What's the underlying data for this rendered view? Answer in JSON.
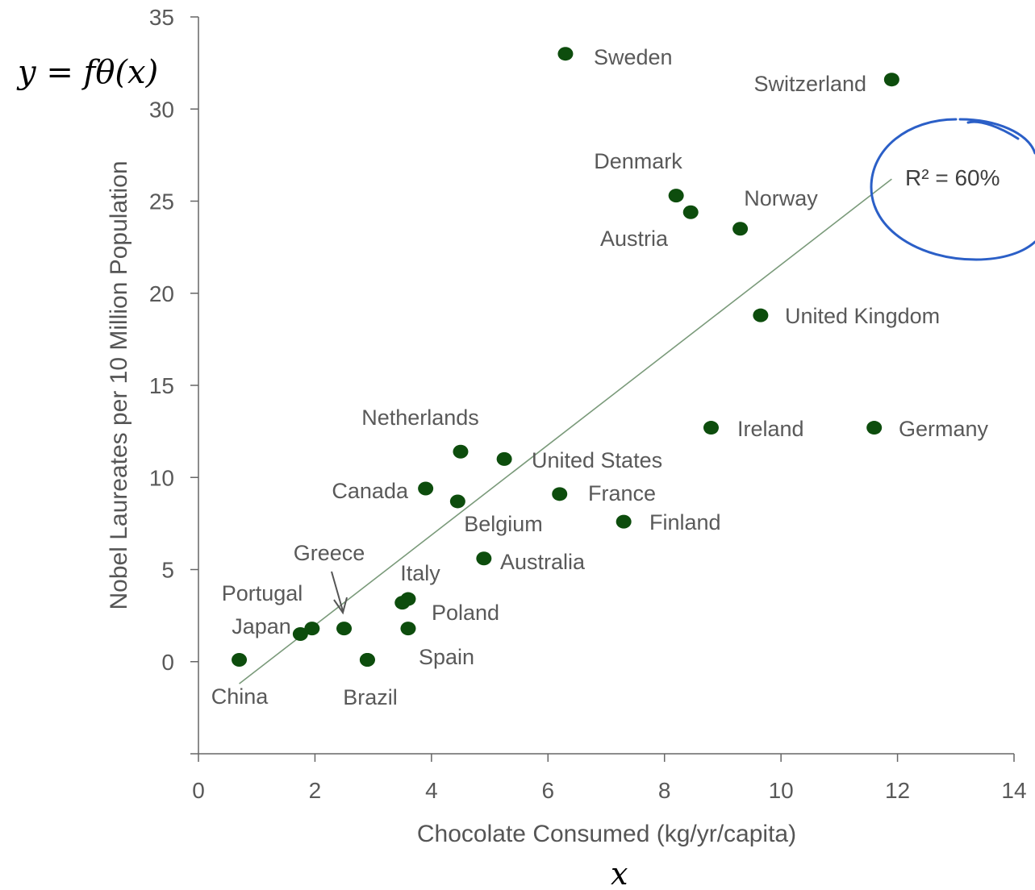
{
  "chart_data": {
    "type": "scatter",
    "xlabel": "Chocolate Consumed (kg/yr/capita)",
    "ylabel": "Nobel Laureates per 10 Million Population",
    "xlim": [
      0,
      14
    ],
    "ylim": [
      -5,
      35
    ],
    "x_ticks": [
      "0",
      "2",
      "4",
      "6",
      "8",
      "10",
      "12",
      "14"
    ],
    "y_ticks": [
      "0",
      "5",
      "10",
      "15",
      "20",
      "25",
      "30",
      "35"
    ],
    "points": [
      {
        "label": "Sweden",
        "x": 6.3,
        "y": 33.0
      },
      {
        "label": "Switzerland",
        "x": 11.9,
        "y": 31.6
      },
      {
        "label": "Denmark",
        "x": 8.2,
        "y": 25.3
      },
      {
        "label": "Austria",
        "x": 8.45,
        "y": 24.4
      },
      {
        "label": "Norway",
        "x": 9.3,
        "y": 23.5
      },
      {
        "label": "United Kingdom",
        "x": 9.65,
        "y": 18.8
      },
      {
        "label": "Ireland",
        "x": 8.8,
        "y": 12.7
      },
      {
        "label": "Germany",
        "x": 11.6,
        "y": 12.7
      },
      {
        "label": "Netherlands",
        "x": 4.5,
        "y": 11.4
      },
      {
        "label": "United States",
        "x": 5.25,
        "y": 11.0
      },
      {
        "label": "Canada",
        "x": 3.9,
        "y": 9.4
      },
      {
        "label": "Belgium",
        "x": 4.45,
        "y": 8.7
      },
      {
        "label": "France",
        "x": 6.2,
        "y": 9.1
      },
      {
        "label": "Finland",
        "x": 7.3,
        "y": 7.6
      },
      {
        "label": "Australia",
        "x": 4.9,
        "y": 5.6
      },
      {
        "label": "Italy",
        "x": 3.6,
        "y": 3.4
      },
      {
        "label": "Italy-2",
        "x": 3.5,
        "y": 3.2
      },
      {
        "label": "Poland",
        "x": 3.6,
        "y": 1.8
      },
      {
        "label": "Greece",
        "x": 2.5,
        "y": 1.8
      },
      {
        "label": "Portugal",
        "x": 1.95,
        "y": 1.8
      },
      {
        "label": "Japan",
        "x": 1.75,
        "y": 1.5
      },
      {
        "label": "Spain",
        "x": 2.9,
        "y": 0.1
      },
      {
        "label": "China",
        "x": 0.7,
        "y": 0.1
      },
      {
        "label": "Brazil",
        "x": 2.9,
        "y": 0.1
      }
    ],
    "labels": [
      "Sweden",
      "Switzerland",
      "Denmark",
      "Austria",
      "Norway",
      "United Kingdom",
      "Ireland",
      "Germany",
      "Netherlands",
      "United States",
      "Canada",
      "Belgium",
      "France",
      "Finland",
      "Australia",
      "Italy",
      "Poland",
      "Greece",
      "Portugal",
      "Japan",
      "Spain",
      "China",
      "Brazil"
    ],
    "trendline": {
      "x": [
        0.7,
        11.9
      ],
      "y": [
        -1.2,
        26.2
      ],
      "r2_label": "R² = 60%"
    },
    "annotations": {
      "function": "y = fθ(x)",
      "x_symbol": "x"
    },
    "colors": {
      "point": "#0d4d0d",
      "trend": "#7a9a7a",
      "circle": "#2b5fc7",
      "axis": "#666666"
    }
  }
}
